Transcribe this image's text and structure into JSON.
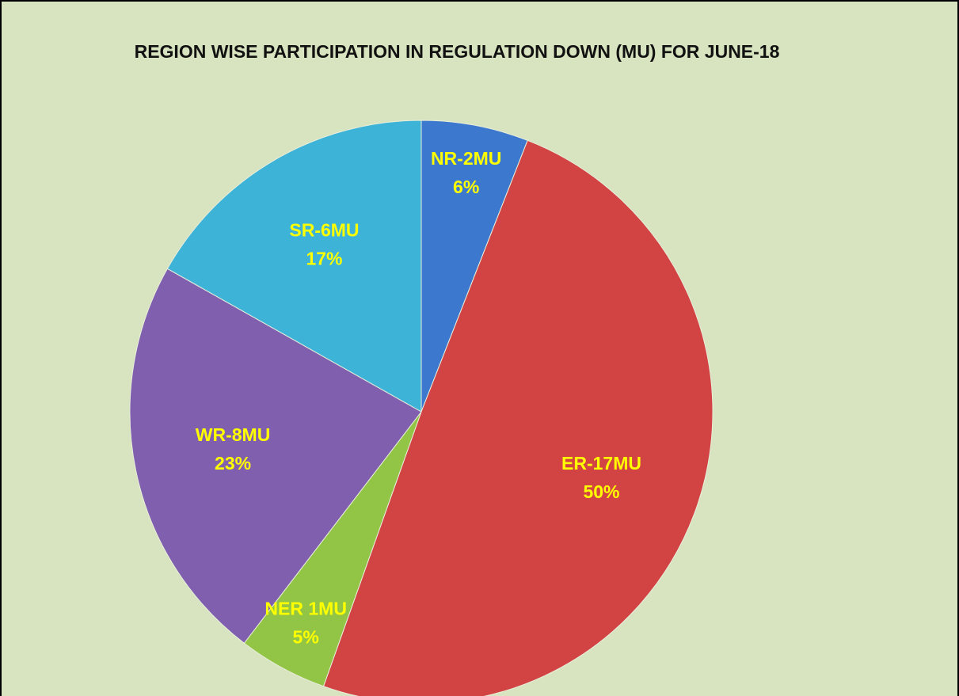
{
  "chart_data": {
    "type": "pie",
    "title": "REGION WISE PARTICIPATION IN REGULATION DOWN (MU) FOR JUNE-18",
    "categories": [
      "NR-2MU",
      "ER-17MU",
      "NER 1MU",
      "WR-8MU",
      "SR-6MU"
    ],
    "values": [
      6,
      50,
      5,
      23,
      17
    ],
    "value_labels": [
      "6%",
      "50%",
      "5%",
      "23%",
      "17%"
    ],
    "colors": [
      "#3d78cf",
      "#d24343",
      "#92c545",
      "#7f5fae",
      "#3db3d8"
    ],
    "label_color": "#ffff00"
  }
}
